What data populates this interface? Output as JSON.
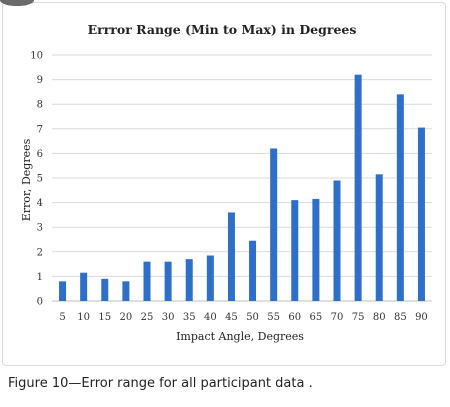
{
  "caption": "Figure 10—Error range for all participant data .",
  "colors": {
    "bar": "#2e6fc7",
    "grid": "#d9d9d9",
    "axis": "#bfbfbf"
  },
  "chart_data": {
    "type": "bar",
    "title": "Errror Range (Min to Max) in Degrees",
    "xlabel": "Impact Angle, Degrees",
    "ylabel": "Error, Degrees",
    "ylim": [
      0,
      10
    ],
    "yticks": [
      0,
      1,
      2,
      3,
      4,
      5,
      6,
      7,
      8,
      9,
      10
    ],
    "grid": true,
    "categories": [
      "5",
      "10",
      "15",
      "20",
      "25",
      "30",
      "35",
      "40",
      "45",
      "50",
      "55",
      "60",
      "65",
      "70",
      "75",
      "80",
      "85",
      "90"
    ],
    "values": [
      0.8,
      1.15,
      0.9,
      0.8,
      1.6,
      1.6,
      1.7,
      1.85,
      3.6,
      2.45,
      6.2,
      4.1,
      4.15,
      4.9,
      9.2,
      5.15,
      8.4,
      7.05
    ]
  }
}
